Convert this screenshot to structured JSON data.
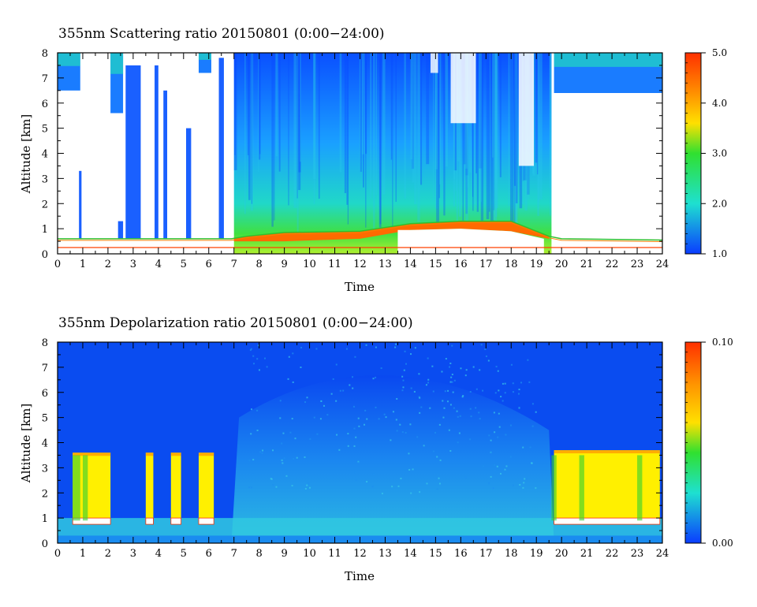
{
  "chart_data": [
    {
      "type": "heatmap",
      "title": "355nm Scattering ratio  20150801 (0:00−24:00)",
      "xlabel": "Time",
      "ylabel": "Altitude [km]",
      "xlim": [
        0,
        24
      ],
      "ylim": [
        0,
        8
      ],
      "x_ticks": [
        "0",
        "1",
        "2",
        "3",
        "4",
        "5",
        "6",
        "7",
        "8",
        "9",
        "10",
        "11",
        "12",
        "13",
        "14",
        "15",
        "16",
        "17",
        "18",
        "19",
        "20",
        "21",
        "22",
        "23",
        "24"
      ],
      "y_ticks": [
        "0",
        "1",
        "2",
        "3",
        "4",
        "5",
        "6",
        "7",
        "8"
      ],
      "colorbar": {
        "range": [
          1.0,
          5.0
        ],
        "ticks": [
          "1.0",
          "2.0",
          "3.0",
          "4.0",
          "5.0"
        ]
      },
      "features": {
        "reference_line_altitude_km": 0.25,
        "boundary_layer_top_km": [
          [
            0,
            0.6
          ],
          [
            6.9,
            0.6
          ],
          [
            7.5,
            0.7
          ],
          [
            9,
            0.85
          ],
          [
            12,
            0.9
          ],
          [
            14,
            1.2
          ],
          [
            16,
            1.3
          ],
          [
            18,
            1.3
          ],
          [
            19.5,
            0.7
          ],
          [
            20,
            0.6
          ],
          [
            24,
            0.55
          ]
        ],
        "cirrus_upper_cloud": [
          [
            0,
            0.9,
            6.5
          ],
          [
            2.1,
            2.6,
            5.6
          ],
          [
            5.6,
            6.1,
            7.2
          ],
          [
            19.7,
            24,
            6.4
          ]
        ],
        "daytime_aerosol_layer": [
          [
            7.0,
            19.6
          ]
        ]
      },
      "colors": {
        "low": "#0a3cff",
        "mid": "#1ee0d0",
        "high": "#ff3000"
      }
    },
    {
      "type": "heatmap",
      "title": "355nm Depolarization ratio  20150801 (0:00−24:00)",
      "xlabel": "Time",
      "ylabel": "Altitude [km]",
      "xlim": [
        0,
        24
      ],
      "ylim": [
        0,
        8
      ],
      "x_ticks": [
        "0",
        "1",
        "2",
        "3",
        "4",
        "5",
        "6",
        "7",
        "8",
        "9",
        "10",
        "11",
        "12",
        "13",
        "14",
        "15",
        "16",
        "17",
        "18",
        "19",
        "20",
        "21",
        "22",
        "23",
        "24"
      ],
      "y_ticks": [
        "0",
        "1",
        "2",
        "3",
        "4",
        "5",
        "6",
        "7",
        "8"
      ],
      "colorbar": {
        "range": [
          0.0,
          0.1
        ],
        "ticks": [
          "0.00",
          "0.10"
        ]
      },
      "features": {
        "high_depolarization_blocks": [
          [
            0.6,
            2.1,
            0.9,
            3.6
          ],
          [
            3.5,
            3.8,
            0.9,
            3.6
          ],
          [
            4.5,
            4.9,
            0.9,
            3.6
          ],
          [
            5.6,
            6.2,
            0.9,
            3.6
          ],
          [
            19.7,
            23.9,
            0.9,
            3.7
          ]
        ],
        "background_level": 0.01
      },
      "colors": {
        "low": "#0a3cff",
        "mid": "#28b4f0",
        "high": "#fff000"
      }
    }
  ]
}
